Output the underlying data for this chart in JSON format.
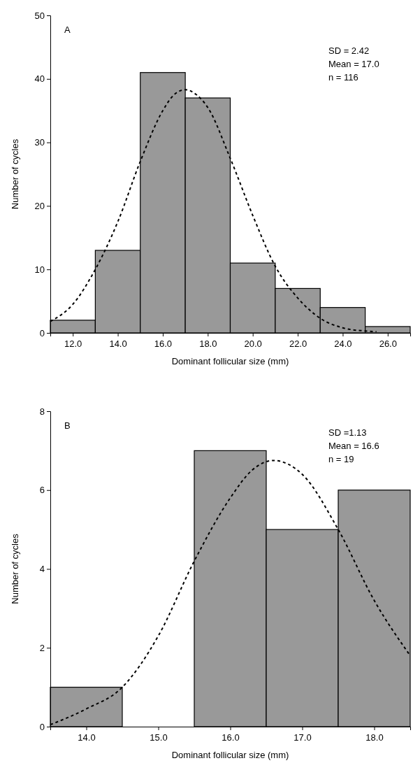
{
  "chart_data": [
    {
      "type": "histogram",
      "xlabel": "Dominant follicular size (mm)",
      "ylabel": "Number of cycles",
      "bins": [
        11,
        13,
        15,
        17,
        19,
        21,
        23,
        25,
        27
      ],
      "values": [
        2,
        13,
        41,
        37,
        11,
        7,
        4,
        1
      ],
      "color": "#999999",
      "xlim": [
        11,
        27
      ],
      "ylim": [
        0,
        50
      ],
      "xticks": [
        {
          "value": 12,
          "label": "12.0"
        },
        {
          "value": 14,
          "label": "14.0"
        },
        {
          "value": 16,
          "label": "16.0"
        },
        {
          "value": 18,
          "label": "18.0"
        },
        {
          "value": 20,
          "label": "20.0"
        },
        {
          "value": 22,
          "label": "22.0"
        },
        {
          "value": 24,
          "label": "24.0"
        },
        {
          "value": 26,
          "label": "26.0"
        }
      ],
      "yticks": [
        0,
        10,
        20,
        30,
        40,
        50
      ],
      "annotations": [
        "A",
        "SD = 2.42",
        "Mean = 17.0",
        "n = 116"
      ],
      "series": [
        {
          "type": "line",
          "color": "#000000",
          "line_style": "dashed",
          "x": [
            11,
            12,
            13,
            14,
            15,
            16,
            16.5,
            17,
            17.5,
            18,
            19,
            20,
            21,
            22,
            23,
            24,
            25,
            25.5
          ],
          "values": [
            1.8,
            4.5,
            10,
            17.5,
            27,
            35,
            37.5,
            38.3,
            37.5,
            35.5,
            27.5,
            18.5,
            10.5,
            5.5,
            2.3,
            0.8,
            0.3,
            0.2
          ]
        }
      ]
    },
    {
      "type": "histogram",
      "xlabel": "Dominant follicular size (mm)",
      "ylabel": "Number of cycles",
      "bins": [
        13.5,
        14.5,
        15.5,
        16.5,
        17.5,
        18.5
      ],
      "values": [
        1,
        0,
        7,
        5,
        6
      ],
      "color": "#999999",
      "xlim": [
        13.5,
        18.5
      ],
      "ylim": [
        0,
        8
      ],
      "xticks": [
        {
          "value": 14,
          "label": "14.0"
        },
        {
          "value": 15,
          "label": "15.0"
        },
        {
          "value": 16,
          "label": "16.0"
        },
        {
          "value": 17,
          "label": "17.0"
        },
        {
          "value": 18,
          "label": "18.0"
        }
      ],
      "yticks": [
        0,
        2,
        4,
        6,
        8
      ],
      "annotations": [
        "B",
        "SD =1.13",
        "Mean = 16.6",
        "n = 19"
      ],
      "series": [
        {
          "type": "line",
          "color": "#000000",
          "line_style": "dashed",
          "x": [
            13.5,
            14,
            14.5,
            15,
            15.5,
            16,
            16.3,
            16.6,
            17,
            17.5,
            18,
            18.5
          ],
          "values": [
            0.05,
            0.45,
            1,
            2.3,
            4.2,
            5.8,
            6.5,
            6.75,
            6.4,
            5,
            3.2,
            1.8
          ]
        }
      ]
    }
  ]
}
